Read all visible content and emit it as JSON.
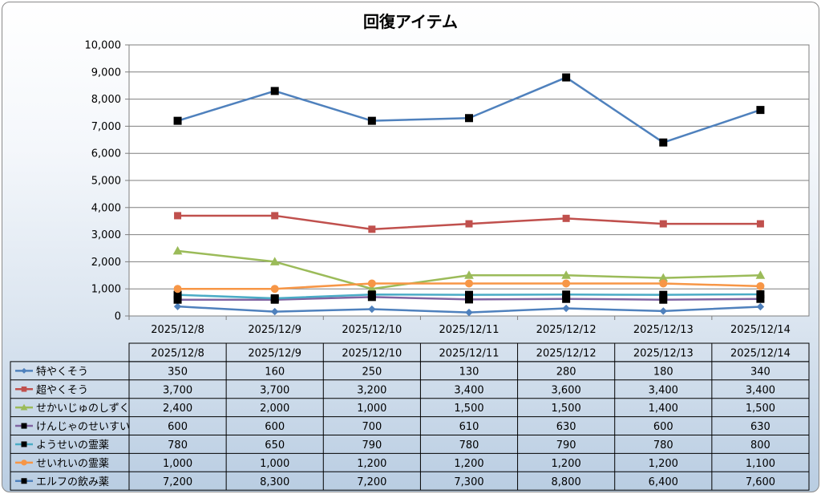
{
  "chart_data": {
    "type": "line",
    "title": "回復アイテム",
    "categories": [
      "2025/12/8",
      "2025/12/9",
      "2025/12/10",
      "2025/12/11",
      "2025/12/12",
      "2025/12/13",
      "2025/12/14"
    ],
    "ylim": [
      0,
      10000
    ],
    "yticks": [
      "0",
      "1,000",
      "2,000",
      "3,000",
      "4,000",
      "5,000",
      "6,000",
      "7,000",
      "8,000",
      "9,000",
      "10,000"
    ],
    "grid": true,
    "legend": "data-table",
    "series": [
      {
        "name": "特やくそう",
        "color": "#4f81bd",
        "marker": "diamond",
        "values": [
          350,
          160,
          250,
          130,
          280,
          180,
          340
        ],
        "labels": [
          "350",
          "160",
          "250",
          "130",
          "280",
          "180",
          "340"
        ]
      },
      {
        "name": "超やくそう",
        "color": "#c0504d",
        "marker": "square",
        "values": [
          3700,
          3700,
          3200,
          3400,
          3600,
          3400,
          3400
        ],
        "labels": [
          "3,700",
          "3,700",
          "3,200",
          "3,400",
          "3,600",
          "3,400",
          "3,400"
        ]
      },
      {
        "name": "せかいじゅのしずく",
        "color": "#9bbb59",
        "marker": "triangle",
        "values": [
          2400,
          2000,
          1000,
          1500,
          1500,
          1400,
          1500
        ],
        "labels": [
          "2,400",
          "2,000",
          "1,000",
          "1,500",
          "1,500",
          "1,400",
          "1,500"
        ]
      },
      {
        "name": "けんじゃのせいすい",
        "color": "#8064a2",
        "marker": "black-square",
        "values": [
          600,
          600,
          700,
          610,
          630,
          600,
          630
        ],
        "labels": [
          "600",
          "600",
          "700",
          "610",
          "630",
          "600",
          "630"
        ]
      },
      {
        "name": "ようせいの霊薬",
        "color": "#4bacc6",
        "marker": "black-square",
        "values": [
          780,
          650,
          790,
          780,
          790,
          780,
          800
        ],
        "labels": [
          "780",
          "650",
          "790",
          "780",
          "790",
          "780",
          "800"
        ]
      },
      {
        "name": "せいれいの霊薬",
        "color": "#f79646",
        "marker": "circle",
        "values": [
          1000,
          1000,
          1200,
          1200,
          1200,
          1200,
          1100
        ],
        "labels": [
          "1,000",
          "1,000",
          "1,200",
          "1,200",
          "1,200",
          "1,200",
          "1,100"
        ]
      },
      {
        "name": "エルフの飲み薬",
        "color": "#4f81bd",
        "marker": "black-square",
        "values": [
          7200,
          8300,
          7200,
          7300,
          8800,
          6400,
          7600
        ],
        "labels": [
          "7,200",
          "8,300",
          "7,200",
          "7,300",
          "8,800",
          "6,400",
          "7,600"
        ]
      }
    ]
  }
}
